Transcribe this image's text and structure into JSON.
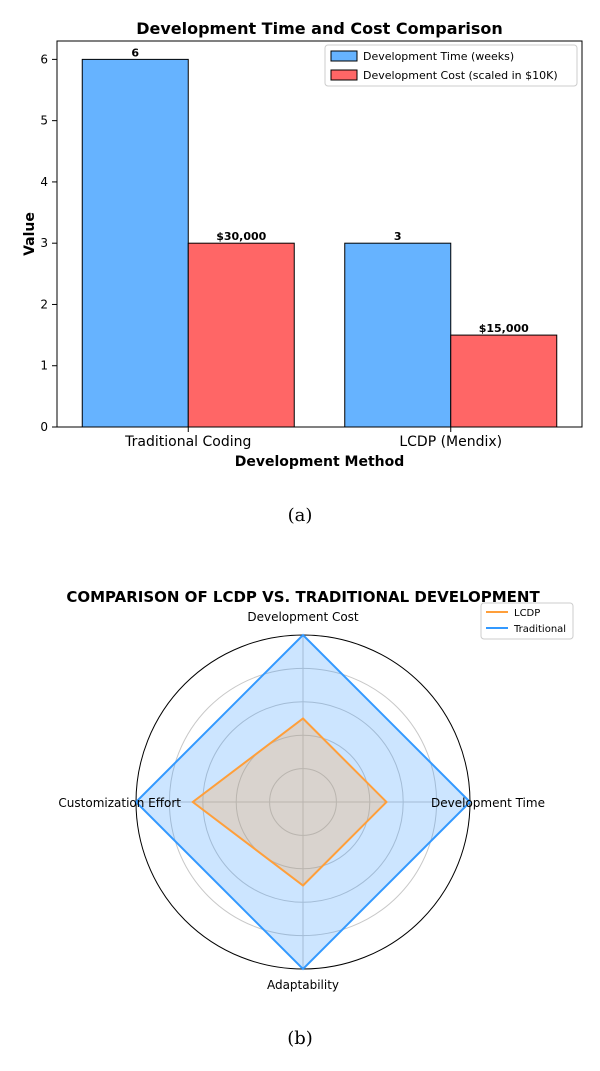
{
  "chart_data": [
    {
      "type": "bar",
      "title": "Development Time and Cost Comparison",
      "xlabel": "Development Method",
      "ylabel": "Value",
      "categories": [
        "Traditional Coding",
        "LCDP (Mendix)"
      ],
      "series": [
        {
          "name": "Development Time (weeks)",
          "values": [
            6,
            3
          ],
          "color": "#66b3ff",
          "data_labels": [
            "6",
            "3"
          ]
        },
        {
          "name": "Development Cost (scaled in $10K)",
          "values": [
            3,
            1.5
          ],
          "color": "#ff6666",
          "data_labels": [
            "$30,000",
            "$15,000"
          ]
        }
      ],
      "ylim": [
        0,
        6.3
      ],
      "yticks": [
        "0",
        "1",
        "2",
        "3",
        "4",
        "5",
        "6"
      ],
      "grid": false,
      "legend_position": "top-right"
    },
    {
      "type": "radar",
      "title": "COMPARISON OF LCDP VS. TRADITIONAL DEVELOPMENT",
      "axes": [
        "Development Cost",
        "Development Time",
        "Adaptability",
        "Customization Effort"
      ],
      "rlim": [
        0,
        1
      ],
      "grid": true,
      "series": [
        {
          "name": "LCDP",
          "values": [
            0.5,
            0.5,
            0.5,
            0.66
          ],
          "color": "#ff9f3a"
        },
        {
          "name": "Traditional",
          "values": [
            1,
            1,
            1,
            1
          ],
          "color": "#3399ff"
        }
      ],
      "legend_position": "top-right"
    }
  ],
  "captions": {
    "a": "(a)",
    "b": "(b)"
  }
}
